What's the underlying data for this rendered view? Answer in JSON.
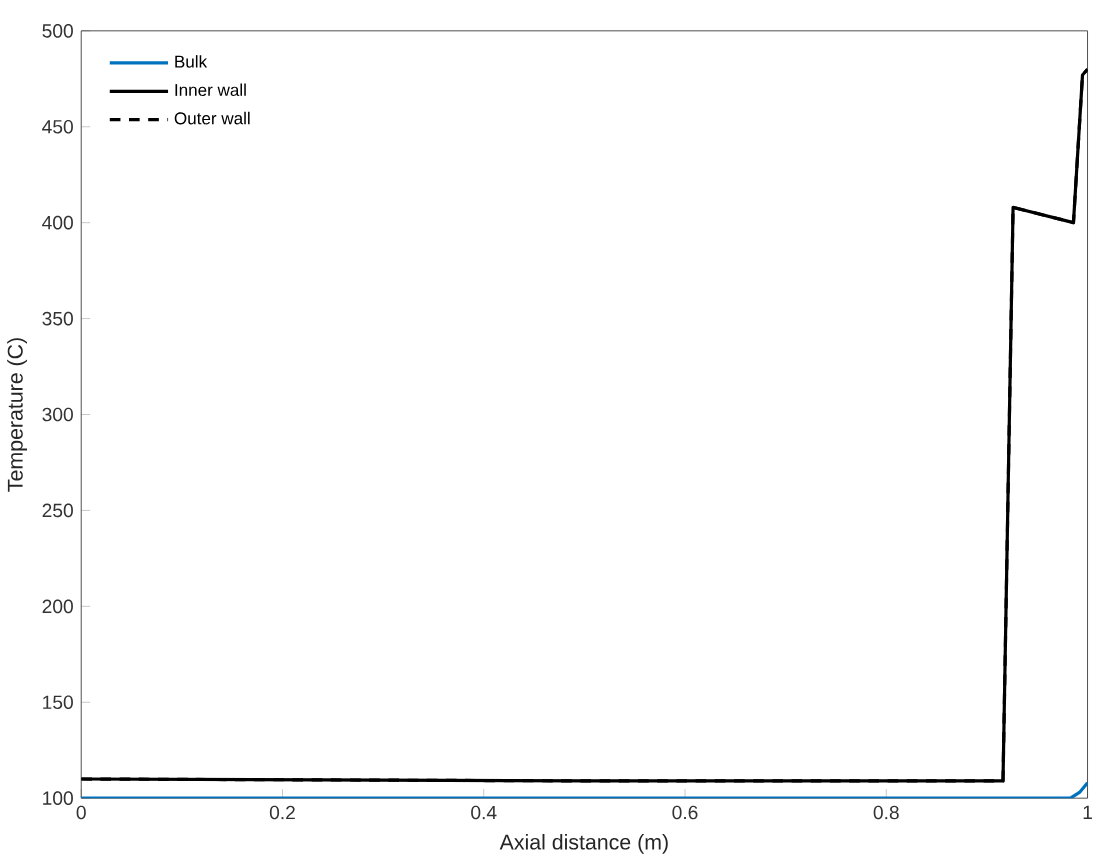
{
  "chart_data": {
    "type": "line",
    "xlabel": "Axial distance (m)",
    "ylabel": "Temperature (C)",
    "xlim": [
      0,
      1
    ],
    "ylim": [
      100,
      500
    ],
    "xticks": [
      0,
      0.2,
      0.4,
      0.6,
      0.8,
      1
    ],
    "yticks": [
      100,
      150,
      200,
      250,
      300,
      350,
      400,
      450,
      500
    ],
    "grid": false,
    "legend": "top left",
    "series": [
      {
        "name": "Bulk",
        "color": "#0072bd",
        "line_style": "solid",
        "x": [
          0,
          0.5,
          0.983,
          0.992,
          1
        ],
        "values": [
          100,
          100,
          100,
          103,
          108
        ]
      },
      {
        "name": "Inner wall",
        "color": "#000000",
        "line_style": "solid",
        "x": [
          0,
          0.5,
          0.916,
          0.926,
          0.986,
          0.995,
          1
        ],
        "values": [
          110,
          109,
          109,
          408,
          400,
          477,
          480
        ]
      },
      {
        "name": "Outer wall",
        "color": "#000000",
        "line_style": "dashed",
        "x": [
          0,
          0.5,
          0.916,
          0.926,
          0.986,
          0.995,
          1
        ],
        "values": [
          110,
          109,
          109,
          408,
          400,
          477,
          480
        ]
      }
    ]
  }
}
